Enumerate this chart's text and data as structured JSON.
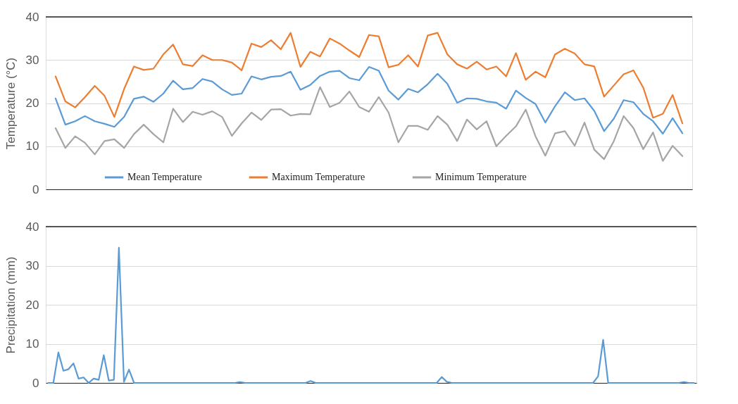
{
  "chart_data": [
    {
      "type": "line",
      "ylabel": "Temperature (°C)",
      "ylim": [
        0,
        40
      ],
      "yticks": [
        0,
        10,
        20,
        30,
        40
      ],
      "categories": [
        null,
        null,
        null,
        null,
        null,
        null,
        null,
        null,
        null,
        null,
        null,
        null,
        null,
        null,
        null,
        null,
        null,
        null,
        null,
        null,
        null,
        null,
        null,
        null,
        null,
        null,
        null,
        null,
        null,
        null,
        null,
        null,
        null,
        null,
        null,
        null,
        null,
        null,
        null,
        null,
        null,
        null,
        null,
        null,
        null,
        null,
        null,
        null,
        null,
        null,
        null,
        null,
        null,
        null,
        null,
        null,
        null,
        null,
        null,
        null,
        null,
        null,
        null,
        null,
        null
      ],
      "grid": "y",
      "legend": "bottom",
      "tick_labels": "y",
      "series": [
        {
          "name": "Mean Temperature",
          "color": "#5b9bd5",
          "values": [
            21.1,
            15,
            15.8,
            17,
            15.8,
            15.2,
            14.5,
            16.8,
            21,
            21.5,
            20.3,
            22.2,
            25.2,
            23.2,
            23.5,
            25.6,
            25,
            23.2,
            21.9,
            22.2,
            26.2,
            25.5,
            26.1,
            26.3,
            27.3,
            23.1,
            24.2,
            26.3,
            27.3,
            27.5,
            25.8,
            25.3,
            28.4,
            27.5,
            22.9,
            20.8,
            23.3,
            22.5,
            24.4,
            26.8,
            24.5,
            20.1,
            21.1,
            21,
            20.4,
            20.1,
            18.7,
            22.9,
            21.2,
            19.8,
            15.5,
            19.3,
            22.5,
            20.7,
            21.1,
            18.2,
            13.5,
            16.4,
            20.7,
            20.2,
            17.5,
            15.8,
            12.9,
            16.5,
            13
          ]
        },
        {
          "name": "Maximum Temperature",
          "color": "#ed7d31",
          "values": [
            26.2,
            20.4,
            19,
            21.4,
            24,
            21.7,
            16.8,
            23.3,
            28.5,
            27.7,
            28,
            31.3,
            33.6,
            29,
            28.6,
            31.1,
            30,
            30,
            29.4,
            27.6,
            33.8,
            33,
            34.6,
            32.5,
            36.3,
            28.4,
            31.9,
            30.8,
            35,
            33.8,
            32.2,
            30.7,
            35.8,
            35.5,
            28.3,
            28.9,
            31.1,
            28.5,
            35.7,
            36.3,
            31.3,
            29,
            28,
            29.6,
            27.8,
            28.5,
            26.2,
            31.6,
            25.4,
            27.3,
            26,
            31.3,
            32.6,
            31.5,
            29,
            28.5,
            21.5,
            24.1,
            26.7,
            27.6,
            23.6,
            16.6,
            17.5,
            21.9,
            15.3
          ]
        },
        {
          "name": "Minimum Temperature",
          "color": "#a5a5a5",
          "values": [
            14.2,
            9.6,
            12.3,
            10.8,
            8.1,
            11.2,
            11.6,
            9.6,
            12.8,
            15,
            12.8,
            10.9,
            18.7,
            15.6,
            18,
            17.3,
            18.1,
            16.8,
            12.4,
            15.3,
            17.8,
            16.1,
            18.5,
            18.6,
            17.1,
            17.5,
            17.4,
            23.7,
            19.1,
            20.1,
            22.7,
            19.1,
            18,
            21.4,
            17.8,
            10.9,
            14.7,
            14.7,
            13.8,
            17,
            15,
            11.2,
            16.2,
            13.9,
            15.8,
            10,
            12.4,
            14.6,
            18.5,
            12.3,
            7.8,
            13,
            13.5,
            10.1,
            15.5,
            9.2,
            7,
            11.2,
            17,
            14.2,
            9.3,
            13.2,
            6.6,
            10.1,
            7.7
          ]
        }
      ]
    },
    {
      "type": "line",
      "ylabel": "Precipitation (mm)",
      "ylim": [
        0,
        40
      ],
      "yticks": [
        0,
        10,
        20,
        30,
        40
      ],
      "categories": [
        null,
        null,
        null,
        null,
        null,
        null,
        null,
        null,
        null,
        null,
        null,
        null,
        null,
        null,
        null,
        null,
        null,
        null,
        null,
        null,
        null,
        null,
        null,
        null,
        null,
        null,
        null,
        null,
        null,
        null,
        null,
        null,
        null,
        null,
        null,
        null,
        null,
        null,
        null,
        null,
        null,
        null,
        null,
        null,
        null,
        null,
        null,
        null,
        null,
        null,
        null,
        null,
        null,
        null,
        null,
        null,
        null,
        null,
        null,
        null,
        null,
        null,
        null,
        null,
        null,
        null,
        null,
        null,
        null,
        null,
        null,
        null,
        null,
        null,
        null,
        null,
        null,
        null,
        null,
        null,
        null,
        null,
        null,
        null,
        null,
        null,
        null,
        null,
        null,
        null,
        null,
        null,
        null,
        null,
        null,
        null,
        null,
        null,
        null,
        null,
        null,
        null,
        null,
        null,
        null,
        null,
        null,
        null,
        null,
        null,
        null,
        null,
        null,
        null,
        null,
        null,
        null,
        null,
        null,
        null,
        null,
        null,
        null,
        null,
        null,
        null,
        null,
        null,
        null
      ],
      "grid": "y",
      "tick_labels": "y",
      "series": [
        {
          "color": "#5b9bd5",
          "values": [
            0,
            0,
            7.8,
            3.1,
            3.5,
            5,
            1.1,
            1.4,
            0,
            1.1,
            0.8,
            7.1,
            0.6,
            0.8,
            34.6,
            0.3,
            3.4,
            0,
            0,
            0,
            0,
            0,
            0,
            0,
            0,
            0,
            0,
            0,
            0,
            0,
            0,
            0,
            0,
            0,
            0,
            0,
            0,
            0,
            0.2,
            0,
            0,
            0,
            0,
            0,
            0,
            0,
            0,
            0,
            0,
            0,
            0,
            0,
            0.5,
            0,
            0,
            0,
            0,
            0,
            0,
            0,
            0,
            0,
            0,
            0,
            0,
            0,
            0,
            0,
            0,
            0,
            0,
            0,
            0,
            0,
            0,
            0,
            0,
            0,
            1.5,
            0.3,
            0,
            0,
            0,
            0,
            0,
            0,
            0,
            0,
            0,
            0,
            0,
            0,
            0,
            0,
            0,
            0,
            0,
            0,
            0,
            0,
            0,
            0,
            0,
            0,
            0,
            0,
            0,
            0,
            0,
            1.7,
            11,
            0,
            0,
            0,
            0,
            0,
            0,
            0,
            0,
            0,
            0,
            0,
            0,
            0,
            0,
            0,
            0.2,
            0,
            0
          ]
        }
      ]
    }
  ]
}
